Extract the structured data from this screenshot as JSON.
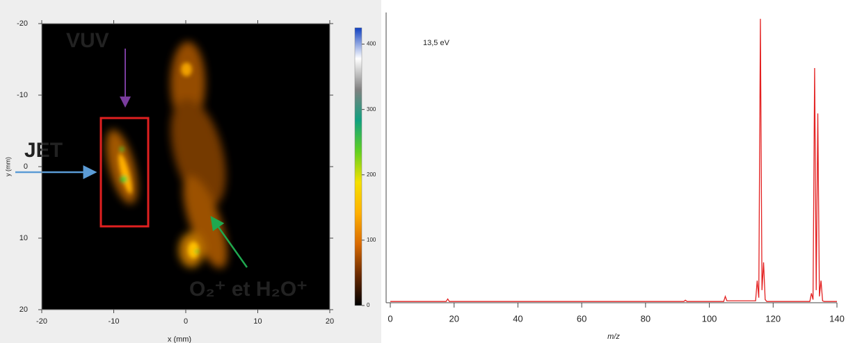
{
  "chart_data": [
    {
      "type": "heatmap",
      "xlabel": "x (mm)",
      "ylabel": "y (mm)",
      "xlim": [
        -20,
        20
      ],
      "ylim": [
        20,
        -20
      ],
      "xticks": [
        -20,
        -10,
        0,
        10,
        20
      ],
      "yticks": [
        -20,
        -10,
        0,
        10,
        20
      ],
      "colorbar": {
        "clim": [
          0,
          425
        ],
        "cticks": [
          0,
          100,
          200,
          300,
          400
        ],
        "colors": [
          "#000000",
          "#6a2a00",
          "#d96a00",
          "#ffb000",
          "#f5e000",
          "#60d020",
          "#10a080",
          "#808080",
          "#ffffff",
          "#1040c0"
        ]
      },
      "annotations": [
        {
          "text": "VUV",
          "color": "#7a3c9e"
        },
        {
          "text": "JET",
          "color": "#5b9bd5"
        },
        {
          "text": "O₂⁺ et H₂O⁺",
          "color": "#1fa84f"
        }
      ],
      "box_color": "#e02020"
    },
    {
      "type": "line",
      "xlabel": "m/z",
      "annotation": "13,5 eV",
      "xlim": [
        0,
        140
      ],
      "ylim": [
        0,
        460
      ],
      "xticks": [
        0,
        20,
        40,
        60,
        80,
        100,
        120,
        140
      ],
      "x": [
        0,
        17.5,
        18,
        18.5,
        92,
        92.5,
        93,
        104.5,
        105,
        105.5,
        114.5,
        115,
        115.5,
        116,
        116.5,
        117,
        117.5,
        118,
        131.5,
        132,
        132.5,
        133,
        133.5,
        134,
        134.5,
        135,
        135.5,
        136,
        140
      ],
      "series": [
        {
          "color": "#e32020",
          "values": [
            2,
            2,
            6,
            2,
            2,
            4,
            2,
            2,
            10,
            3,
            3,
            35,
            8,
            450,
            20,
            64,
            5,
            2,
            2,
            15,
            5,
            372,
            20,
            300,
            10,
            35,
            3,
            2,
            2
          ]
        }
      ]
    }
  ]
}
